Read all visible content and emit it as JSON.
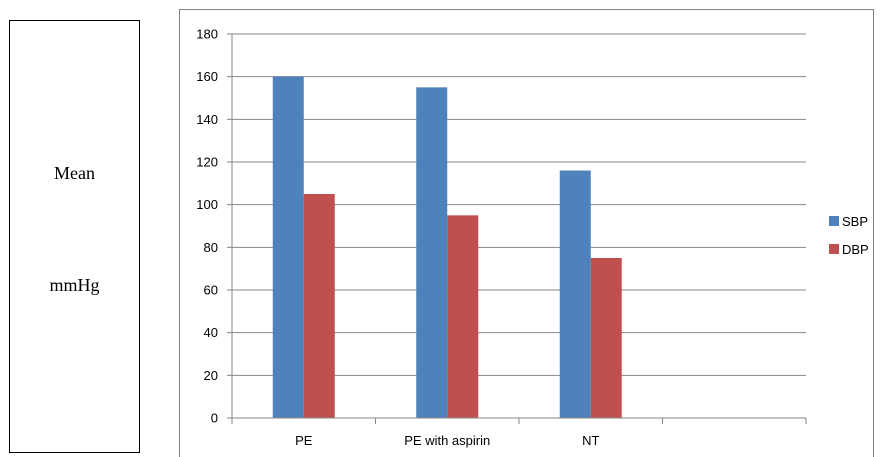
{
  "side_label": {
    "line1": "Mean",
    "line2": "mmHg"
  },
  "chart_data": {
    "type": "bar",
    "categories": [
      "PE",
      "PE with aspirin",
      "NT",
      ""
    ],
    "series": [
      {
        "name": "SBP",
        "values": [
          160,
          155,
          116,
          null
        ],
        "color": "#4F81BD"
      },
      {
        "name": "DBP",
        "values": [
          105,
          95,
          75,
          null
        ],
        "color": "#C0504D"
      }
    ],
    "title": "",
    "xlabel": "",
    "ylabel": "",
    "ylim": [
      0,
      180
    ],
    "yticks": [
      0,
      20,
      40,
      60,
      80,
      100,
      120,
      140,
      160,
      180
    ],
    "grid": true,
    "legend": "right"
  }
}
